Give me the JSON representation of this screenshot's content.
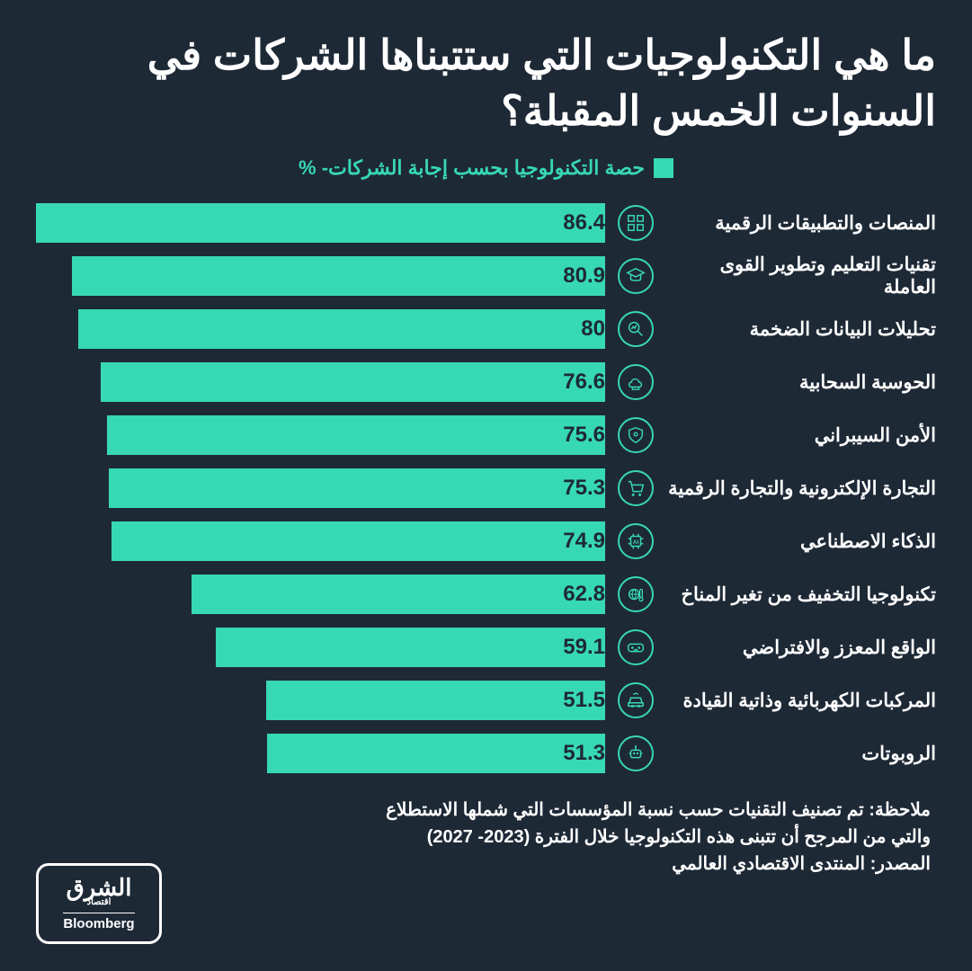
{
  "title": "ما هي التكنولوجيات التي ستتبناها الشركات في السنوات الخمس المقبلة؟",
  "legend": "حصة التكنولوجيا بحسب إجابة الشركات- %",
  "chart": {
    "type": "bar",
    "max": 86.4,
    "bar_color": "#37d8b4",
    "value_color": "#1e2936",
    "background_color": "#1e2936",
    "label_fontsize": 21,
    "value_fontsize": 24,
    "items": [
      {
        "label": "المنصات والتطبيقات الرقمية",
        "value": 86.4,
        "icon": "apps"
      },
      {
        "label": "تقنيات التعليم وتطوير القوى العاملة",
        "value": 80.9,
        "icon": "education"
      },
      {
        "label": "تحليلات البيانات الضخمة",
        "value": 80,
        "icon": "analytics"
      },
      {
        "label": "الحوسبة السحابية",
        "value": 76.6,
        "icon": "cloud"
      },
      {
        "label": "الأمن السيبراني",
        "value": 75.6,
        "icon": "shield"
      },
      {
        "label": "التجارة الإلكترونية والتجارة الرقمية",
        "value": 75.3,
        "icon": "cart"
      },
      {
        "label": "الذكاء الاصطناعي",
        "value": 74.9,
        "icon": "ai"
      },
      {
        "label": "تكنولوجيا التخفيف من تغير المناخ",
        "value": 62.8,
        "icon": "climate"
      },
      {
        "label": "الواقع المعزز والافتراضي",
        "value": 59.1,
        "icon": "vr"
      },
      {
        "label": "المركبات الكهربائية وذاتية القيادة",
        "value": 51.5,
        "icon": "car"
      },
      {
        "label": "الروبوتات",
        "value": 51.3,
        "icon": "robot"
      }
    ]
  },
  "note_line1": "ملاحظة: تم تصنيف التقنيات حسب نسبة المؤسسات التي شملها الاستطلاع",
  "note_line2": "والتي من المرجح أن تتبنى هذه التكنولوجيا خلال الفترة (2023- 2027)",
  "source": "المصدر: المنتدى الاقتصادي العالمي",
  "logo": {
    "brand": "الشرق",
    "sub": "اقتصاد",
    "partner": "Bloomberg"
  }
}
